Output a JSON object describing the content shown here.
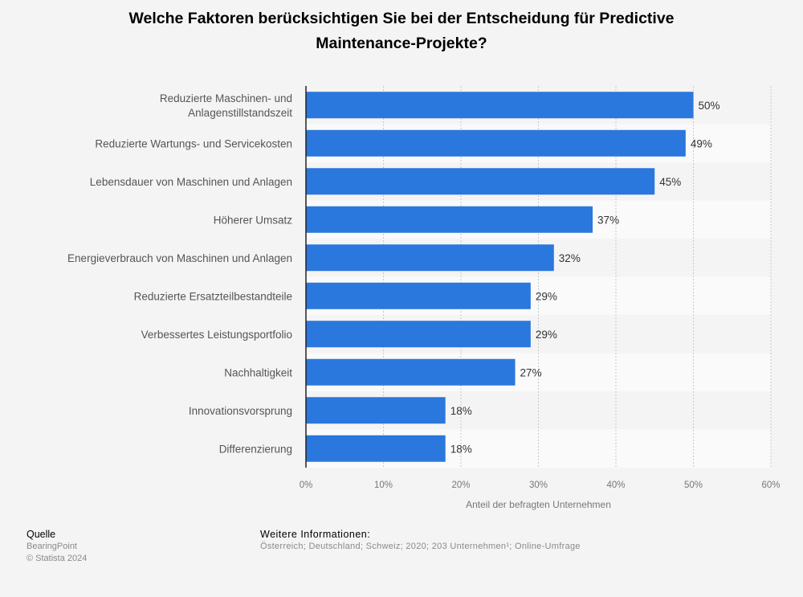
{
  "title_line1": "Welche Faktoren berücksichtigen Sie bei der Entscheidung für Predictive",
  "title_line2": "Maintenance-Projekte?",
  "chart_data": {
    "type": "bar",
    "orientation": "horizontal",
    "categories": [
      [
        "Reduzierte Maschinen- und",
        "Anlagenstillstandszeit"
      ],
      [
        "Reduzierte Wartungs- und Servicekosten"
      ],
      [
        "Lebensdauer von Maschinen und Anlagen"
      ],
      [
        "Höherer Umsatz"
      ],
      [
        "Energieverbrauch von Maschinen und Anlagen"
      ],
      [
        "Reduzierte Ersatzteilbestandteile"
      ],
      [
        "Verbessertes Leistungsportfolio"
      ],
      [
        "Nachhaltigkeit"
      ],
      [
        "Innovationsvorsprung"
      ],
      [
        "Differenzierung"
      ]
    ],
    "values": [
      50,
      49,
      45,
      37,
      32,
      29,
      29,
      27,
      18,
      18
    ],
    "value_labels": [
      "50%",
      "49%",
      "45%",
      "37%",
      "32%",
      "29%",
      "29%",
      "27%",
      "18%",
      "18%"
    ],
    "xlim": [
      0,
      60
    ],
    "xticks": [
      0,
      10,
      20,
      30,
      40,
      50,
      60
    ],
    "xtick_labels": [
      "0%",
      "10%",
      "20%",
      "30%",
      "40%",
      "50%",
      "60%"
    ],
    "xlabel": "Anteil der befragten Unternehmen",
    "grid": true,
    "bar_color": "#2a77dd"
  },
  "footer": {
    "source_heading": "Quelle",
    "source": "BearingPoint",
    "copyright": "© Statista 2024",
    "info_heading": "Weitere Informationen:",
    "info": "Österreich; Deutschland; Schweiz; 2020; 203 Unternehmen¹; Online-Umfrage"
  }
}
